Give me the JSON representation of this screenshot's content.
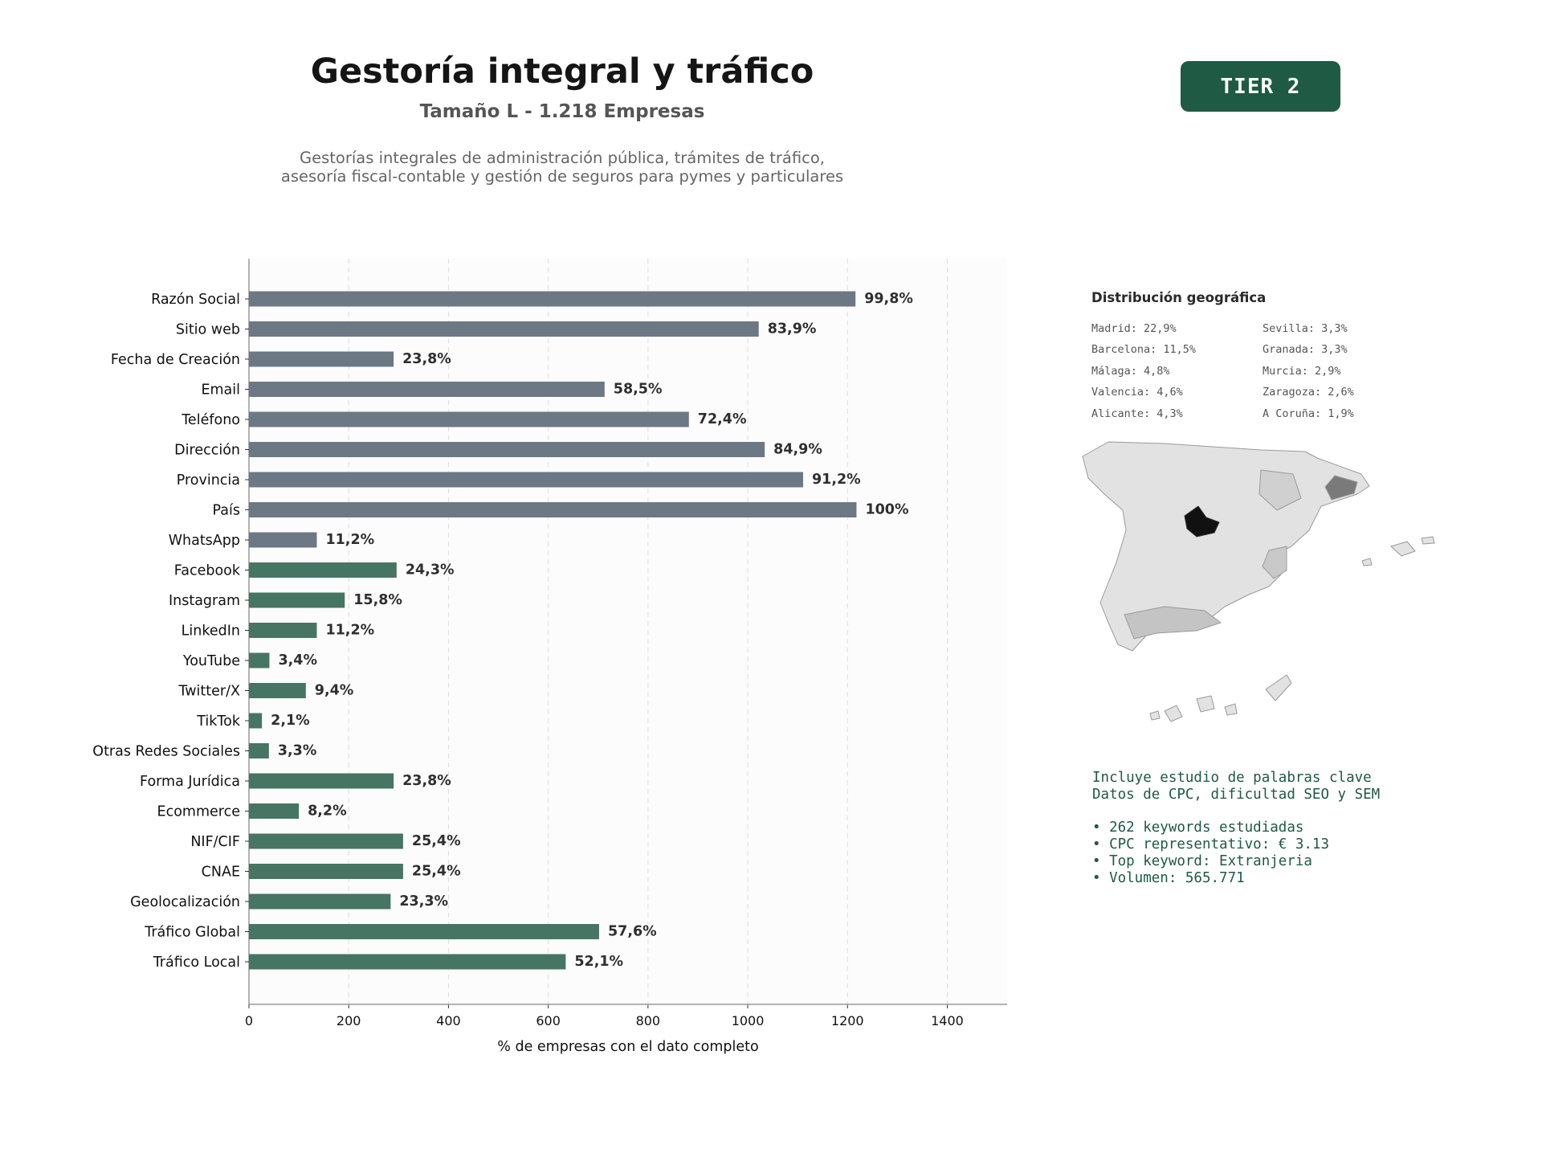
{
  "header": {
    "title": "Gestoría integral y tráfico",
    "subtitle": "Tamaño L - 1.218 Empresas",
    "description": "Gestorías integrales de administración pública, trámites de tráfico, asesoría fiscal-contable y gestión de seguros para pymes y particulares",
    "tier": "TIER 2"
  },
  "colors": {
    "gray_bar": "#6c7883",
    "green_bar": "#467563",
    "brand": "#1e5a44"
  },
  "chart_data": {
    "type": "bar",
    "orientation": "horizontal",
    "xlabel": "% de empresas con el dato completo",
    "xlim": [
      0,
      1520
    ],
    "xticks": [
      0,
      200,
      400,
      600,
      800,
      1000,
      1200,
      1400
    ],
    "grid": "vertical dashed",
    "categories": [
      "Razón Social",
      "Sitio web",
      "Fecha de Creación",
      "Email",
      "Teléfono",
      "Dirección",
      "Provincia",
      "País",
      "WhatsApp",
      "Facebook",
      "Instagram",
      "LinkedIn",
      "YouTube",
      "Twitter/X",
      "TikTok",
      "Otras Redes Sociales",
      "Forma Jurídica",
      "Ecommerce",
      "NIF/CIF",
      "CNAE",
      "Geolocalización",
      "Tráfico Global",
      "Tráfico Local"
    ],
    "values": [
      1216,
      1022,
      290,
      713,
      882,
      1034,
      1111,
      1218,
      136,
      296,
      192,
      136,
      41,
      114,
      26,
      40,
      290,
      100,
      309,
      309,
      284,
      702,
      635
    ],
    "labels": [
      "99,8%",
      "83,9%",
      "23,8%",
      "58,5%",
      "72,4%",
      "84,9%",
      "91,2%",
      "100%",
      "11,2%",
      "24,3%",
      "15,8%",
      "11,2%",
      "3,4%",
      "9,4%",
      "2,1%",
      "3,3%",
      "23,8%",
      "8,2%",
      "25,4%",
      "25,4%",
      "23,3%",
      "57,6%",
      "52,1%"
    ],
    "bar_colors": [
      "gray",
      "gray",
      "gray",
      "gray",
      "gray",
      "gray",
      "gray",
      "gray",
      "gray",
      "green",
      "green",
      "green",
      "green",
      "green",
      "green",
      "green",
      "green",
      "green",
      "green",
      "green",
      "green",
      "green",
      "green"
    ]
  },
  "geo": {
    "title": "Distribución geográfica",
    "entries": [
      "Madrid: 22,9%",
      "Sevilla: 3,3%",
      "Barcelona: 11,5%",
      "Granada: 3,3%",
      "Málaga: 4,8%",
      "Murcia: 2,9%",
      "Valencia: 4,6%",
      "Zaragoza: 2,6%",
      "Alicante: 4,3%",
      "A Coruña: 1,9%"
    ]
  },
  "keywords": {
    "line1": "Incluye estudio de palabras clave",
    "line2": "Datos de CPC, dificultad SEO y SEM",
    "bullets": [
      "• 262 keywords estudiadas",
      "• CPC representativo: € 3.13",
      "• Top keyword: Extranjeria",
      "• Volumen: 565.771"
    ]
  }
}
